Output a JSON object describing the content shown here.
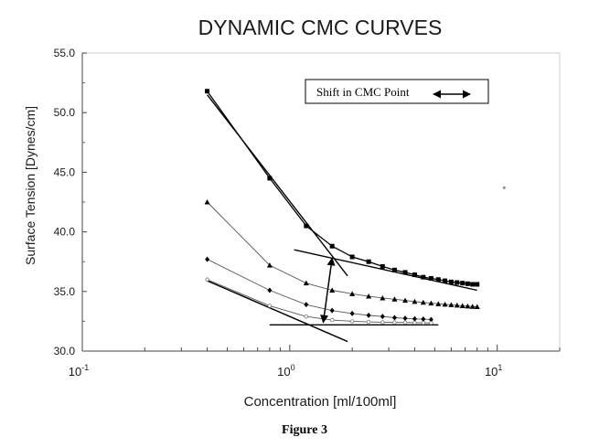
{
  "chart_data": {
    "type": "line",
    "title": "DYNAMIC CMC CURVES",
    "xlabel": "Concentration [ml/100ml]",
    "ylabel": "Surface Tension [Dynes/cm]",
    "xscale": "log",
    "xlim": [
      0.1,
      20
    ],
    "ylim": [
      30.0,
      55.0
    ],
    "yticks": [
      30.0,
      35.0,
      40.0,
      45.0,
      50.0,
      55.0
    ],
    "ytick_labels": [
      "30.0",
      "35.0",
      "40.0",
      "45.0",
      "50.0",
      "55.0"
    ],
    "xtick_labels": [
      {
        "value": 0.1,
        "base": "10",
        "exp": "-1"
      },
      {
        "value": 1,
        "base": "10",
        "exp": "0"
      },
      {
        "value": 10,
        "base": "10",
        "exp": "1"
      }
    ],
    "series": [
      {
        "name": "Series 1",
        "marker": "square",
        "x": [
          0.4,
          0.8,
          1.2,
          1.6,
          2.0,
          2.4,
          2.8,
          3.2,
          3.6,
          4.0,
          4.4,
          4.8,
          5.2,
          5.6,
          6.0,
          6.4,
          6.8,
          7.2,
          7.6,
          8.0
        ],
        "y": [
          51.8,
          44.5,
          40.5,
          38.8,
          37.9,
          37.5,
          37.1,
          36.8,
          36.6,
          36.4,
          36.2,
          36.1,
          36.0,
          35.9,
          35.8,
          35.75,
          35.7,
          35.65,
          35.6,
          35.6
        ]
      },
      {
        "name": "Series 2",
        "marker": "triangle",
        "x": [
          0.4,
          0.8,
          1.2,
          1.6,
          2.0,
          2.4,
          2.8,
          3.2,
          3.6,
          4.0,
          4.4,
          4.8,
          5.2,
          5.6,
          6.0,
          6.4,
          6.8,
          7.2,
          7.6,
          8.0
        ],
        "y": [
          42.5,
          37.2,
          35.7,
          35.1,
          34.8,
          34.6,
          34.45,
          34.35,
          34.25,
          34.15,
          34.08,
          34.02,
          33.96,
          33.92,
          33.88,
          33.84,
          33.8,
          33.77,
          33.74,
          33.72
        ]
      },
      {
        "name": "Series 3",
        "marker": "diamond",
        "x": [
          0.4,
          0.8,
          1.2,
          1.6,
          2.0,
          2.4,
          2.8,
          3.2,
          3.6,
          4.0,
          4.4,
          4.8
        ],
        "y": [
          37.7,
          35.1,
          33.9,
          33.4,
          33.15,
          33.0,
          32.9,
          32.8,
          32.75,
          32.7,
          32.68,
          32.65
        ]
      },
      {
        "name": "Series 4",
        "marker": "circle-open",
        "x": [
          0.4,
          0.8,
          1.2,
          1.6,
          2.0,
          2.4,
          2.8,
          3.2,
          3.6,
          4.0,
          4.4,
          4.8
        ],
        "y": [
          36.0,
          33.8,
          32.9,
          32.6,
          32.5,
          32.45,
          32.42,
          32.4,
          32.4,
          32.38,
          32.37,
          32.36
        ]
      }
    ],
    "annotations": {
      "legend_text": "Shift in CMC Point",
      "tangent_lines": [
        {
          "x": [
            0.4,
            1.9
          ],
          "y": [
            51.5,
            36.3
          ]
        },
        {
          "x": [
            1.05,
            8.0
          ],
          "y": [
            38.5,
            35.1
          ]
        },
        {
          "x": [
            0.4,
            1.9
          ],
          "y": [
            35.9,
            30.8
          ]
        },
        {
          "x": [
            0.8,
            5.2
          ],
          "y": [
            32.2,
            32.2
          ]
        }
      ],
      "shift_arrow": {
        "from": [
          1.45,
          32.4
        ],
        "to": [
          1.6,
          37.8
        ]
      },
      "stray_dots": [
        {
          "x": 10.8,
          "y": 43.7
        }
      ]
    }
  },
  "caption": "Figure 3"
}
